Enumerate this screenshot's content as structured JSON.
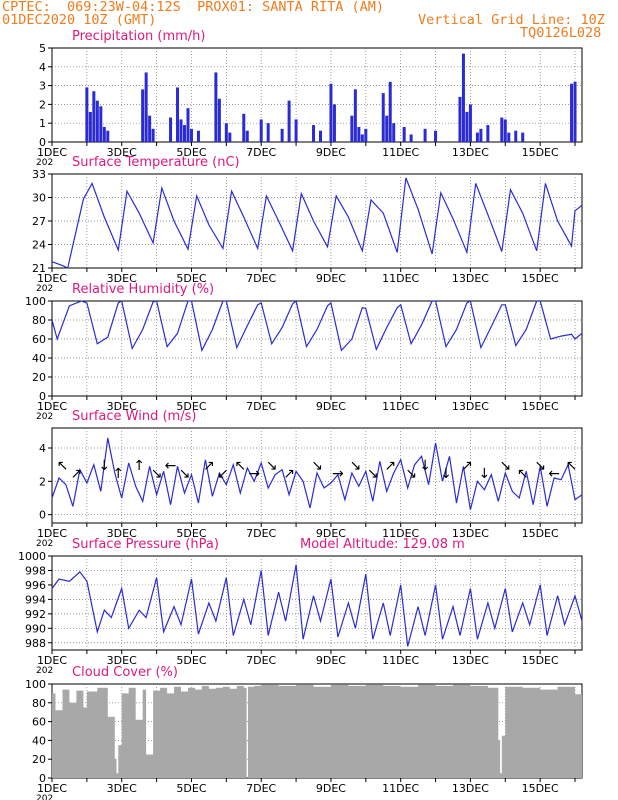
{
  "header": {
    "line1": "CPTEC:  069:23W-04:12S  PROX01: SANTA RITA (AM)",
    "line2_left": "01DEC2020 10Z (GMT)",
    "line2_right": "Vertical Grid Line: 10Z",
    "line3_right": "TQ0126L028",
    "model_altitude": "Model Altitude: 129.08 m"
  },
  "colors": {
    "header": "#f07c1c",
    "title": "#e0197e",
    "series": "#2b2bd6",
    "cloud": "#a8a8a8",
    "arrow": "#000000"
  },
  "x_axis": {
    "days": [
      "1DEC",
      "3DEC",
      "5DEC",
      "7DEC",
      "9DEC",
      "11DEC",
      "13DEC",
      "15DEC"
    ],
    "day_numbers": [
      1,
      3,
      5,
      7,
      9,
      11,
      13,
      15
    ],
    "start_day": 1,
    "end_day": 16.2,
    "year_fragment": "202"
  },
  "chart_data": [
    {
      "type": "bar",
      "title": "Precipitation (mm/h)",
      "yticks": [
        "0",
        "1",
        "2",
        "3",
        "4",
        "5"
      ],
      "ylim": [
        0,
        5
      ],
      "x": [
        2.0,
        2.1,
        2.2,
        2.3,
        2.4,
        2.5,
        2.6,
        3.6,
        3.7,
        3.8,
        3.9,
        4.4,
        4.6,
        4.7,
        4.8,
        4.9,
        5.0,
        5.2,
        5.7,
        5.8,
        6.0,
        6.1,
        6.5,
        6.6,
        7.0,
        7.2,
        7.6,
        7.8,
        8.0,
        8.5,
        8.7,
        9.0,
        9.1,
        9.6,
        9.7,
        9.8,
        9.9,
        10.0,
        10.5,
        10.6,
        10.7,
        10.8,
        11.1,
        11.3,
        11.7,
        12.0,
        12.7,
        12.8,
        12.9,
        13.0,
        13.2,
        13.3,
        13.5,
        13.9,
        14.0,
        14.1,
        14.3,
        14.5,
        15.9,
        16.0
      ],
      "values": [
        2.9,
        1.6,
        2.7,
        2.2,
        1.9,
        0.8,
        0.6,
        2.8,
        3.7,
        1.4,
        0.7,
        1.3,
        2.9,
        1.2,
        0.9,
        1.8,
        0.7,
        0.6,
        3.7,
        2.3,
        1.0,
        0.5,
        1.5,
        0.6,
        1.2,
        1.0,
        0.7,
        2.2,
        1.2,
        0.9,
        0.6,
        3.1,
        2.0,
        1.4,
        2.8,
        0.8,
        0.4,
        0.7,
        2.6,
        1.4,
        3.2,
        1.0,
        0.8,
        0.4,
        0.7,
        0.6,
        2.4,
        4.7,
        1.6,
        2.0,
        0.5,
        0.7,
        0.9,
        1.3,
        1.2,
        0.5,
        0.6,
        0.5,
        3.1,
        3.2
      ]
    },
    {
      "type": "line",
      "title": "Surface Temperature (nC)",
      "yticks": [
        "21",
        "24",
        "27",
        "30",
        "33"
      ],
      "ylim": [
        21,
        33
      ],
      "series": [
        {
          "x": [
            1.0,
            1.3,
            1.45,
            1.9,
            2.15,
            2.5,
            2.9,
            3.15,
            3.5,
            3.9,
            4.15,
            4.5,
            4.9,
            5.15,
            5.5,
            5.9,
            6.15,
            6.5,
            6.9,
            7.15,
            7.5,
            7.9,
            8.15,
            8.5,
            8.9,
            9.15,
            9.5,
            9.9,
            10.15,
            10.5,
            10.9,
            11.15,
            11.5,
            11.9,
            12.15,
            12.5,
            12.9,
            13.15,
            13.5,
            13.9,
            14.15,
            14.5,
            14.9,
            15.15,
            15.5,
            15.9,
            16.0,
            16.2
          ],
          "values": [
            21.8,
            21.3,
            21.0,
            29.8,
            31.8,
            27.5,
            23.3,
            30.8,
            28.0,
            24.2,
            31.2,
            27.0,
            23.4,
            30.2,
            26.5,
            23.5,
            30.8,
            27.5,
            23.5,
            30.2,
            27.0,
            23.2,
            30.5,
            27.0,
            23.7,
            30.2,
            27.5,
            23.2,
            29.7,
            28.0,
            23.0,
            32.5,
            28.5,
            22.8,
            30.6,
            27.3,
            23.0,
            31.8,
            27.8,
            23.1,
            31.0,
            28.0,
            23.2,
            31.8,
            27.0,
            23.8,
            28.3,
            29.0
          ]
        }
      ]
    },
    {
      "type": "line",
      "title": "Relative Humidity (%)",
      "yticks": [
        "0",
        "20",
        "40",
        "60",
        "80",
        "100"
      ],
      "ylim": [
        0,
        100
      ],
      "series": [
        {
          "x": [
            1.0,
            1.15,
            1.5,
            1.85,
            2.0,
            2.3,
            2.6,
            2.9,
            3.0,
            3.3,
            3.6,
            3.9,
            4.0,
            4.3,
            4.6,
            4.9,
            5.0,
            5.3,
            5.6,
            5.9,
            6.0,
            6.3,
            6.6,
            6.9,
            7.0,
            7.3,
            7.6,
            7.9,
            8.0,
            8.3,
            8.6,
            8.9,
            9.0,
            9.3,
            9.6,
            9.9,
            10.0,
            10.3,
            10.6,
            10.9,
            11.0,
            11.3,
            11.6,
            11.9,
            12.0,
            12.3,
            12.6,
            12.9,
            13.0,
            13.3,
            13.6,
            13.9,
            14.0,
            14.3,
            14.6,
            14.9,
            15.0,
            15.3,
            15.6,
            15.9,
            16.0,
            16.2
          ],
          "values": [
            80,
            60,
            95,
            100,
            98,
            55,
            62,
            98,
            100,
            50,
            70,
            99,
            100,
            52,
            66,
            100,
            100,
            48,
            70,
            100,
            100,
            51,
            74,
            96,
            98,
            55,
            72,
            97,
            100,
            52,
            70,
            95,
            98,
            48,
            60,
            93,
            92,
            49,
            72,
            93,
            96,
            55,
            75,
            100,
            100,
            52,
            70,
            98,
            100,
            51,
            73,
            96,
            96,
            53,
            70,
            100,
            100,
            60,
            63,
            65,
            60,
            66
          ]
        }
      ]
    },
    {
      "type": "line",
      "title": "Surface Wind (m/s)",
      "yticks": [
        "0",
        "2",
        "4"
      ],
      "ylim": [
        -0.5,
        5.2
      ],
      "series": [
        {
          "x": [
            1.0,
            1.2,
            1.4,
            1.6,
            1.8,
            2.0,
            2.2,
            2.4,
            2.6,
            2.8,
            3.0,
            3.2,
            3.4,
            3.6,
            3.8,
            4.0,
            4.2,
            4.4,
            4.6,
            4.8,
            5.0,
            5.2,
            5.4,
            5.6,
            5.8,
            6.0,
            6.2,
            6.4,
            6.6,
            6.8,
            7.0,
            7.2,
            7.4,
            7.6,
            7.8,
            8.0,
            8.2,
            8.4,
            8.6,
            8.8,
            9.0,
            9.2,
            9.4,
            9.6,
            9.8,
            10.0,
            10.2,
            10.4,
            10.6,
            10.8,
            11.0,
            11.2,
            11.4,
            11.6,
            11.8,
            12.0,
            12.2,
            12.4,
            12.6,
            12.8,
            13.0,
            13.2,
            13.4,
            13.6,
            13.8,
            14.0,
            14.2,
            14.4,
            14.6,
            14.8,
            15.0,
            15.2,
            15.4,
            15.6,
            15.8,
            16.0,
            16.2
          ],
          "values": [
            1.0,
            2.2,
            1.8,
            0.5,
            2.7,
            1.9,
            3.0,
            1.4,
            4.6,
            2.5,
            1.0,
            3.1,
            1.7,
            0.8,
            2.9,
            1.2,
            2.6,
            0.6,
            2.9,
            1.3,
            2.4,
            0.7,
            3.3,
            1.1,
            2.5,
            1.8,
            3.0,
            1.3,
            2.8,
            2.0,
            3.1,
            1.6,
            2.4,
            2.7,
            1.2,
            2.6,
            2.0,
            0.4,
            2.5,
            1.6,
            1.9,
            2.4,
            0.9,
            2.5,
            1.7,
            2.6,
            0.8,
            3.2,
            1.4,
            2.5,
            3.3,
            1.6,
            3.0,
            3.5,
            1.8,
            4.3,
            2.0,
            3.5,
            0.7,
            2.9,
            0.3,
            2.0,
            1.5,
            2.4,
            0.8,
            2.5,
            1.4,
            1.0,
            2.6,
            0.6,
            2.9,
            0.5,
            2.2,
            2.1,
            3.0,
            0.9,
            1.2
          ]
        }
      ]
    },
    {
      "type": "line",
      "title": "Surface Pressure (hPa)",
      "yticks": [
        "988",
        "990",
        "992",
        "994",
        "996",
        "998",
        "1000"
      ],
      "ylim": [
        987,
        1000
      ],
      "series": [
        {
          "x": [
            1.0,
            1.2,
            1.5,
            1.8,
            2.0,
            2.3,
            2.5,
            2.7,
            3.0,
            3.2,
            3.5,
            3.7,
            4.0,
            4.2,
            4.5,
            4.7,
            5.0,
            5.2,
            5.5,
            5.7,
            6.0,
            6.2,
            6.5,
            6.7,
            7.0,
            7.2,
            7.5,
            7.7,
            8.0,
            8.2,
            8.5,
            8.7,
            9.0,
            9.2,
            9.5,
            9.7,
            10.0,
            10.2,
            10.5,
            10.7,
            11.0,
            11.2,
            11.5,
            11.7,
            12.0,
            12.2,
            12.5,
            12.7,
            13.0,
            13.2,
            13.5,
            13.7,
            14.0,
            14.2,
            14.5,
            14.7,
            15.0,
            15.2,
            15.5,
            15.7,
            16.0,
            16.2
          ],
          "values": [
            995.5,
            996.8,
            996.5,
            997.8,
            996.5,
            989.5,
            992.5,
            991.5,
            995.5,
            990.0,
            992.5,
            991.5,
            997.0,
            989.5,
            993.0,
            990.5,
            996.8,
            989.2,
            993.5,
            991.0,
            997.0,
            989.0,
            994.0,
            990.5,
            998.0,
            989.0,
            995.0,
            991.0,
            998.8,
            988.5,
            994.5,
            991.0,
            996.8,
            988.8,
            993.5,
            990.0,
            997.5,
            988.5,
            993.5,
            989.0,
            996.0,
            987.5,
            993.0,
            989.0,
            996.0,
            988.5,
            993.0,
            989.0,
            995.5,
            988.5,
            993.5,
            990.0,
            995.5,
            989.5,
            993.5,
            990.5,
            996.0,
            989.0,
            994.5,
            990.5,
            994.5,
            991.0
          ]
        }
      ]
    },
    {
      "type": "area",
      "title": "Cloud Cover (%)",
      "yticks": [
        "0",
        "20",
        "40",
        "60",
        "80",
        "100"
      ],
      "ylim": [
        0,
        100
      ],
      "series": [
        {
          "x": [
            1.0,
            1.1,
            1.3,
            1.5,
            1.7,
            1.9,
            2.0,
            2.3,
            2.6,
            2.8,
            2.85,
            2.9,
            3.0,
            3.2,
            3.4,
            3.6,
            3.7,
            3.9,
            4.1,
            4.3,
            4.5,
            4.7,
            4.9,
            5.1,
            5.3,
            5.5,
            5.7,
            5.9,
            6.1,
            6.3,
            6.5,
            6.58,
            6.6,
            6.62,
            6.8,
            7.0,
            7.5,
            8.0,
            8.5,
            9.0,
            9.5,
            10.0,
            10.5,
            11.0,
            11.5,
            12.0,
            12.5,
            13.0,
            13.5,
            13.8,
            13.85,
            13.9,
            14.0,
            14.5,
            15.0,
            15.5,
            16.0,
            16.2
          ],
          "values": [
            90,
            72,
            94,
            80,
            93,
            75,
            92,
            96,
            65,
            20,
            5,
            35,
            90,
            96,
            62,
            94,
            25,
            93,
            96,
            90,
            97,
            92,
            96,
            94,
            98,
            95,
            96,
            97,
            95,
            98,
            96,
            0,
            0,
            97,
            98,
            99,
            98,
            99,
            97,
            99,
            98,
            99,
            98,
            97,
            99,
            98,
            99,
            98,
            96,
            40,
            5,
            45,
            97,
            96,
            94,
            97,
            89,
            93
          ]
        }
      ]
    }
  ],
  "wind_arrows": [
    {
      "x": 1.3,
      "dir": "↖"
    },
    {
      "x": 1.7,
      "dir": "↗"
    },
    {
      "x": 2.5,
      "dir": "↓"
    },
    {
      "x": 2.9,
      "dir": "↑"
    },
    {
      "x": 3.5,
      "dir": "↑"
    },
    {
      "x": 4.0,
      "dir": "↘"
    },
    {
      "x": 4.4,
      "dir": "←"
    },
    {
      "x": 4.8,
      "dir": "↘"
    },
    {
      "x": 5.5,
      "dir": "↗"
    },
    {
      "x": 5.9,
      "dir": "↙"
    },
    {
      "x": 6.4,
      "dir": "↖"
    },
    {
      "x": 6.8,
      "dir": "→"
    },
    {
      "x": 7.3,
      "dir": "↘"
    },
    {
      "x": 7.8,
      "dir": "↗"
    },
    {
      "x": 8.6,
      "dir": "↘"
    },
    {
      "x": 9.2,
      "dir": "→"
    },
    {
      "x": 9.7,
      "dir": "↘"
    },
    {
      "x": 10.2,
      "dir": "↘"
    },
    {
      "x": 10.7,
      "dir": "↗"
    },
    {
      "x": 11.3,
      "dir": "↘"
    },
    {
      "x": 11.7,
      "dir": "↓"
    },
    {
      "x": 12.3,
      "dir": "↓"
    },
    {
      "x": 12.9,
      "dir": "↗"
    },
    {
      "x": 13.4,
      "dir": "↓"
    },
    {
      "x": 14.0,
      "dir": "↘"
    },
    {
      "x": 14.5,
      "dir": "↖"
    },
    {
      "x": 15.0,
      "dir": "↘"
    },
    {
      "x": 15.4,
      "dir": "←"
    },
    {
      "x": 15.9,
      "dir": "↖"
    }
  ]
}
